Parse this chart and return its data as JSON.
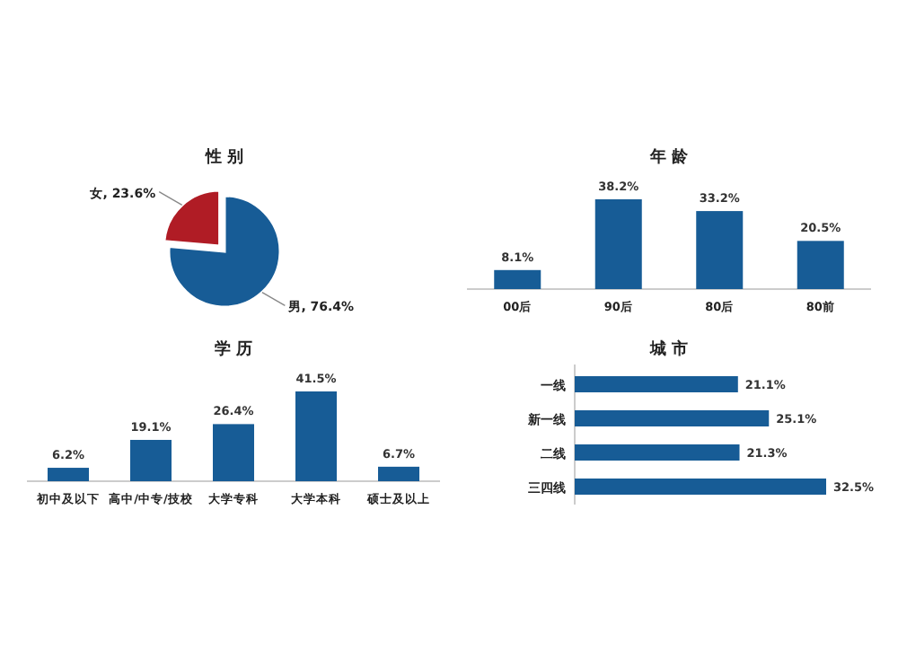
{
  "chart_data": [
    {
      "type": "pie",
      "title": "性 别",
      "categories": [
        "女",
        "男"
      ],
      "values": [
        23.6,
        76.4
      ],
      "colors": [
        "#b01c25",
        "#175c96"
      ],
      "value_labels": [
        "23.6%",
        "76.4%"
      ]
    },
    {
      "type": "bar",
      "title": "年 龄",
      "categories": [
        "00后",
        "90后",
        "80后",
        "80前"
      ],
      "values": [
        8.1,
        38.2,
        33.2,
        20.5
      ],
      "color": "#175c96",
      "value_labels": [
        "8.1%",
        "38.2%",
        "33.2%",
        "20.5%"
      ]
    },
    {
      "type": "bar",
      "title": "学 历",
      "categories": [
        "初中及以下",
        "高中/中专/技校",
        "大学专科",
        "大学本科",
        "硕士及以上"
      ],
      "values": [
        6.2,
        19.1,
        26.4,
        41.5,
        6.7
      ],
      "color": "#175c96",
      "value_labels": [
        "6.2%",
        "19.1%",
        "26.4%",
        "41.5%",
        "6.7%"
      ]
    },
    {
      "type": "bar",
      "orientation": "horizontal",
      "title": "城 市",
      "categories": [
        "一线",
        "新一线",
        "二线",
        "三四线"
      ],
      "values": [
        21.1,
        25.1,
        21.3,
        32.5
      ],
      "color": "#175c96",
      "value_labels": [
        "21.1%",
        "25.1%",
        "21.3%",
        "32.5%"
      ]
    }
  ]
}
